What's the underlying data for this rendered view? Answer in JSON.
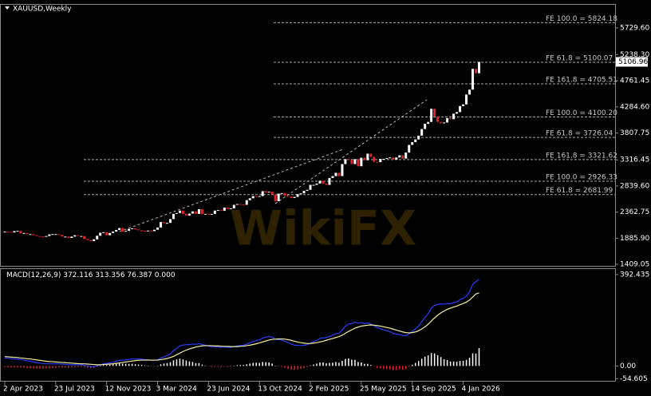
{
  "chart_data": {
    "type": "candlestick",
    "title": "XAUUSD,Weekly",
    "watermark": "WikiFX",
    "categories": [
      "2 Apr 2023",
      null,
      null,
      null,
      null,
      null,
      null,
      null,
      null,
      null,
      null,
      null,
      null,
      null,
      null,
      null,
      "23 Jul 2023",
      null,
      null,
      null,
      null,
      null,
      null,
      null,
      null,
      null,
      null,
      null,
      null,
      null,
      null,
      null,
      "12 Nov 2023",
      null,
      null,
      null,
      null,
      null,
      null,
      null,
      null,
      null,
      null,
      null,
      null,
      null,
      null,
      null,
      "3 Mar 2024",
      null,
      null,
      null,
      null,
      null,
      null,
      null,
      null,
      null,
      null,
      null,
      null,
      null,
      null,
      null,
      "23 Jun 2024",
      null,
      null,
      null,
      null,
      null,
      null,
      null,
      null,
      null,
      null,
      null,
      null,
      null,
      null,
      null,
      "13 Oct 2024",
      null,
      null,
      null,
      null,
      null,
      null,
      null,
      null,
      null,
      null,
      null,
      null,
      null,
      null,
      null,
      "2 Feb 2025",
      null,
      null,
      null,
      null,
      null,
      null,
      null,
      null,
      null,
      null,
      null,
      null,
      null,
      null,
      null,
      "25 May 2025",
      null,
      null,
      null,
      null,
      null,
      null,
      null,
      null,
      null,
      null,
      null,
      null,
      null,
      null,
      null,
      "14 Sep 2025",
      null,
      null,
      null,
      null,
      null,
      null,
      null,
      null,
      null,
      null,
      null,
      null,
      null,
      null,
      null,
      "4 Jan 2026",
      null,
      null,
      null,
      null,
      null
    ],
    "close": [
      2005,
      2000,
      1990,
      2015,
      2020,
      1975,
      1980,
      1960,
      1960,
      1940,
      1925,
      1920,
      1910,
      1925,
      1955,
      1960,
      1960,
      1945,
      1915,
      1915,
      1890,
      1915,
      1940,
      1925,
      1925,
      1870,
      1850,
      1832,
      1865,
      1930,
      1985,
      1995,
      1940,
      1980,
      2005,
      2035,
      2070,
      2005,
      2020,
      2055,
      2065,
      2045,
      2030,
      2020,
      2015,
      2025,
      2015,
      2040,
      2080,
      2180,
      2160,
      2165,
      2235,
      2330,
      2345,
      2390,
      2330,
      2300,
      2335,
      2375,
      2330,
      2415,
      2325,
      2330,
      2320,
      2330,
      2390,
      2400,
      2385,
      2445,
      2420,
      2430,
      2495,
      2510,
      2505,
      2495,
      2580,
      2615,
      2655,
      2650,
      2655,
      2745,
      2720,
      2735,
      2685,
      2560,
      2700,
      2710,
      2660,
      2645,
      2620,
      2640,
      2690,
      2705,
      2750,
      2770,
      2860,
      2860,
      2885,
      2935,
      2880,
      2860,
      2985,
      3020,
      3080,
      3020,
      3240,
      3330,
      3320,
      3240,
      3330,
      3200,
      3355,
      3310,
      3430,
      3370,
      3280,
      3275,
      3335,
      3335,
      3350,
      3360,
      3320,
      3360,
      3400,
      3340,
      3450,
      3590,
      3640,
      3690,
      3760,
      3880,
      3975,
      4010,
      4250,
      4110,
      4010,
      3985,
      4000,
      4080,
      4060,
      4160,
      4190,
      4300,
      4330,
      4510,
      4600,
      4980,
      4900,
      5106.96
    ],
    "up_color": "#ffffff",
    "down_color": "#e0232b",
    "ylim": [
      1380,
      6150
    ],
    "yticks": [
      {
        "value": 5729.6,
        "label": "5729.60"
      },
      {
        "value": 5238.3,
        "label": "5238.30"
      },
      4761.45,
      {
        "value": 4284.6,
        "label": "4284.60"
      },
      3807.75,
      3316.45,
      {
        "value": 2839.6,
        "label": "2839.60"
      },
      2362.75,
      {
        "value": 1885.9,
        "label": "1885.90"
      },
      1409.05
    ],
    "levels": [
      {
        "value": 5824.18,
        "label": "FE 100.0 = 5824.18"
      },
      {
        "value": 5100.07,
        "label": "FE 61.8 = 5100.07"
      },
      {
        "value": 4705.51,
        "label": "FE 161.8 = 4705.51"
      },
      {
        "value": 4100.2,
        "label": "FE 100.0 = 4100.20"
      },
      {
        "value": 3726.04,
        "label": "FE 61.8 = 3726.04"
      },
      {
        "value": 3321.62,
        "label": "FE 161.8 = 3321.62"
      },
      {
        "value": 2926.33,
        "label": "FE 100.0 = 2926.33"
      },
      {
        "value": 2681.99,
        "label": "FE 61.8 = 2681.99"
      }
    ],
    "macd": {
      "type": "macd",
      "title": "MACD(12,26,9)",
      "main": [
        35,
        33,
        31,
        30,
        29,
        27,
        25,
        22,
        20,
        17,
        14,
        12,
        10,
        9,
        9,
        9,
        9,
        9,
        8,
        7,
        5,
        5,
        5,
        5,
        5,
        3,
        0,
        -3,
        -3,
        0,
        5,
        9,
        11,
        13,
        16,
        20,
        24,
        25,
        26,
        28,
        30,
        30,
        30,
        29,
        27,
        26,
        24,
        24,
        26,
        34,
        39,
        44,
        52,
        65,
        76,
        86,
        90,
        91,
        92,
        94,
        93,
        96,
        92,
        89,
        85,
        82,
        82,
        82,
        80,
        81,
        80,
        80,
        83,
        86,
        88,
        89,
        94,
        99,
        105,
        109,
        112,
        120,
        123,
        126,
        124,
        115,
        113,
        111,
        106,
        100,
        94,
        89,
        88,
        87,
        89,
        91,
        98,
        104,
        110,
        118,
        121,
        121,
        127,
        132,
        139,
        140,
        154,
        170,
        180,
        182,
        188,
        184,
        186,
        182,
        184,
        180,
        172,
        164,
        160,
        155,
        151,
        147,
        140,
        137,
        135,
        130,
        130,
        138,
        148,
        159,
        172,
        190,
        208,
        224,
        248,
        260,
        264,
        266,
        265,
        268,
        267,
        272,
        275,
        285,
        290,
        300,
        318,
        350,
        362,
        372.116
      ],
      "signal": [
        40,
        39,
        38,
        37,
        36,
        34,
        33,
        31,
        30,
        28,
        26,
        24,
        22,
        20,
        19,
        18,
        17,
        16,
        15,
        14,
        13,
        12,
        11,
        10,
        9,
        9,
        8,
        7,
        6,
        5,
        5,
        6,
        7,
        8,
        9,
        11,
        13,
        15,
        17,
        19,
        21,
        23,
        24,
        25,
        25,
        25,
        25,
        25,
        25,
        27,
        29,
        32,
        36,
        41,
        48,
        55,
        62,
        68,
        73,
        77,
        81,
        84,
        86,
        87,
        87,
        87,
        86,
        86,
        85,
        84,
        84,
        83,
        83,
        83,
        84,
        85,
        87,
        89,
        92,
        95,
        99,
        103,
        107,
        111,
        114,
        115,
        116,
        116,
        115,
        113,
        110,
        106,
        103,
        100,
        98,
        96,
        96,
        98,
        100,
        103,
        106,
        110,
        114,
        118,
        122,
        126,
        132,
        140,
        148,
        155,
        162,
        167,
        171,
        173,
        175,
        176,
        175,
        173,
        171,
        168,
        165,
        162,
        158,
        154,
        150,
        146,
        143,
        142,
        143,
        146,
        151,
        159,
        168,
        179,
        193,
        206,
        218,
        228,
        236,
        243,
        248,
        253,
        257,
        263,
        268,
        274,
        283,
        296,
        309,
        313.356
      ],
      "histogram": [
        -5,
        -6,
        -7,
        -7,
        -7,
        -7,
        -8,
        -9,
        -10,
        -11,
        -12,
        -12,
        -12,
        -11,
        -10,
        -9,
        -8,
        -7,
        -7,
        -7,
        -8,
        -7,
        -6,
        -5,
        -4,
        -6,
        -8,
        -10,
        -9,
        -5,
        0,
        3,
        4,
        5,
        7,
        9,
        11,
        10,
        9,
        9,
        9,
        7,
        6,
        4,
        2,
        1,
        -1,
        -1,
        1,
        7,
        10,
        12,
        16,
        24,
        28,
        31,
        28,
        23,
        19,
        17,
        12,
        12,
        6,
        2,
        -2,
        -5,
        -4,
        -4,
        -5,
        -3,
        -4,
        -3,
        0,
        3,
        4,
        4,
        7,
        10,
        13,
        14,
        13,
        17,
        16,
        15,
        10,
        0,
        -3,
        -5,
        -9,
        -13,
        -16,
        -17,
        -15,
        -13,
        -9,
        -5,
        2,
        6,
        10,
        15,
        15,
        11,
        13,
        14,
        17,
        14,
        22,
        30,
        32,
        27,
        26,
        17,
        15,
        9,
        9,
        4,
        -3,
        -9,
        -11,
        -13,
        -14,
        -15,
        -18,
        -17,
        -15,
        -16,
        -13,
        -4,
        5,
        13,
        21,
        31,
        40,
        45,
        55,
        54,
        46,
        38,
        29,
        25,
        19,
        19,
        18,
        22,
        22,
        26,
        35,
        54,
        53,
        76.387
      ],
      "extra": {
        "value": 0,
        "label": "0.000"
      },
      "main_color": "#2a3cff",
      "signal_color": "#f5f0a0",
      "hist_up_color": "#ffffff",
      "hist_down_color": "#e0232b",
      "ylim": [
        -64,
        416
      ],
      "yticks": [
        392.435,
        {
          "value": 0,
          "label": "0.00"
        },
        -54.605
      ]
    }
  }
}
